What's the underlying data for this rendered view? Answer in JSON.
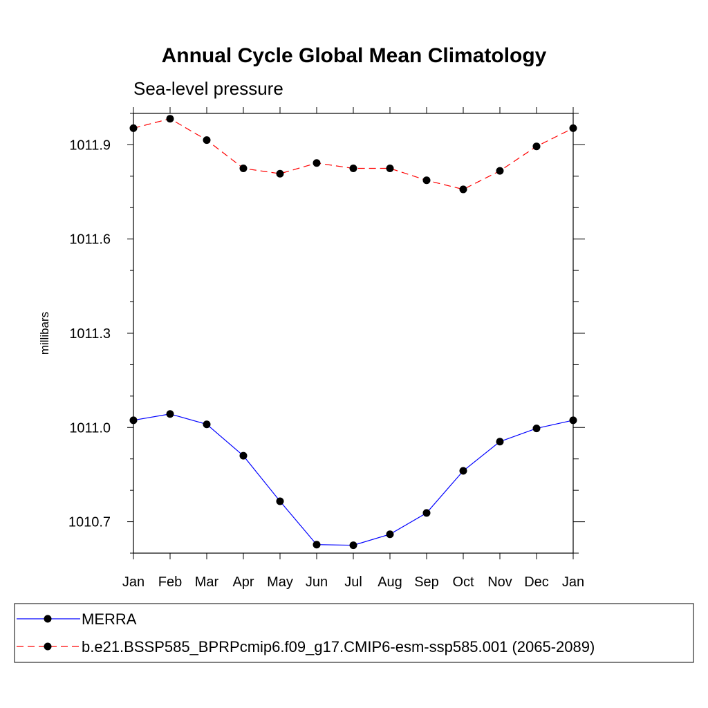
{
  "chart_data": {
    "type": "line",
    "title": "Annual Cycle Global Mean Climatology",
    "subtitle": "Sea-level pressure",
    "xlabel": "",
    "ylabel": "millibars",
    "categories": [
      "Jan",
      "Feb",
      "Mar",
      "Apr",
      "May",
      "Jun",
      "Jul",
      "Aug",
      "Sep",
      "Oct",
      "Nov",
      "Dec",
      "Jan"
    ],
    "yticks": [
      1010.7,
      1011.0,
      1011.3,
      1011.6,
      1011.9
    ],
    "ytick_labels": [
      "1010.7",
      "1011.0",
      "1011.3",
      "1011.6",
      "1011.9"
    ],
    "ylim": [
      1010.6,
      1012.0
    ],
    "grid": false,
    "legend_position": "bottom",
    "series": [
      {
        "name": "MERRA",
        "color": "#0000ff",
        "line_style": "solid",
        "marker": "filled-circle",
        "values": [
          1011.023,
          1011.043,
          1011.01,
          1010.91,
          1010.765,
          1010.627,
          1010.625,
          1010.66,
          1010.728,
          1010.862,
          1010.955,
          1010.997,
          1011.023
        ]
      },
      {
        "name": "b.e21.BSSP585_BPRPcmip6.f09_g17.CMIP6-esm-ssp585.001 (2065-2089)",
        "color": "#ff0000",
        "line_style": "dashed",
        "marker": "filled-circle",
        "values": [
          1011.953,
          1011.983,
          1011.915,
          1011.825,
          1011.808,
          1011.842,
          1011.825,
          1011.825,
          1011.787,
          1011.758,
          1011.817,
          1011.895,
          1011.953
        ]
      }
    ]
  }
}
